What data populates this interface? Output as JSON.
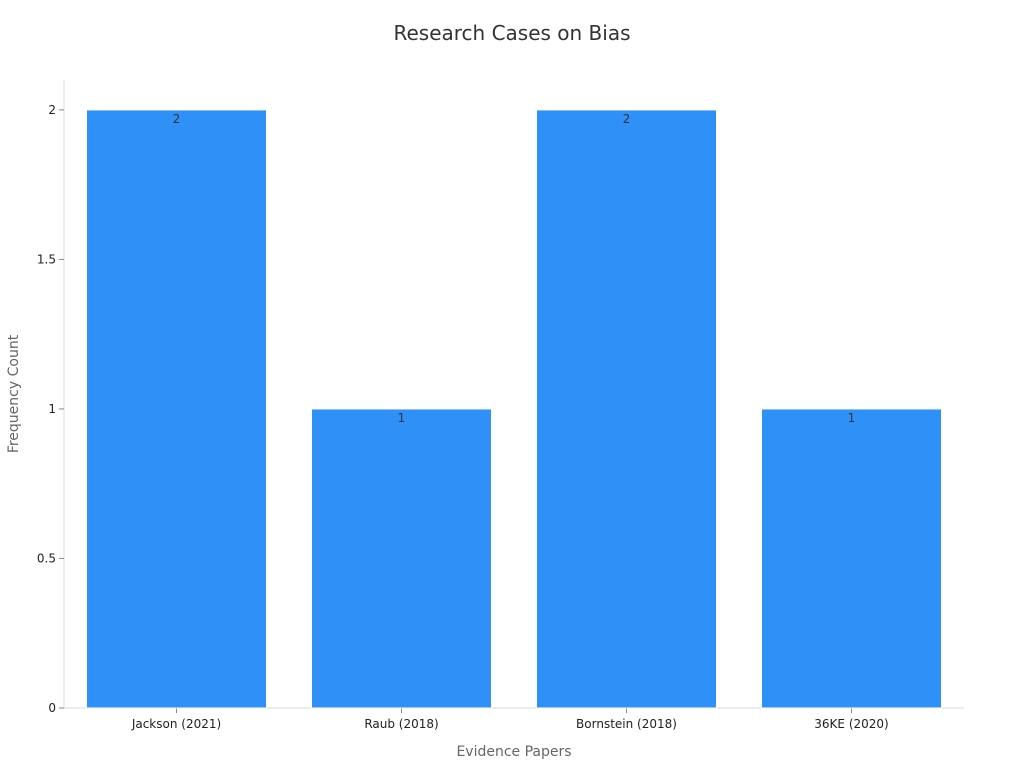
{
  "chart_data": {
    "type": "bar",
    "title": "Research Cases on Bias",
    "xlabel": "Evidence Papers",
    "ylabel": "Frequency Count",
    "categories": [
      "Jackson (2021)",
      "Raub (2018)",
      "Bornstein (2018)",
      "36KE (2020)"
    ],
    "values": [
      2,
      1,
      2,
      1
    ],
    "data_labels": [
      "2",
      "1",
      "2",
      "1"
    ],
    "ylim": [
      0,
      2.1
    ],
    "yticks": [
      0,
      0.5,
      1,
      1.5,
      2
    ],
    "ytick_labels": [
      "0",
      "0.5",
      "1",
      "1.5",
      "2"
    ],
    "grid": false,
    "legend": "none",
    "colors": {
      "bar": "#2F91F7",
      "bar_edge": "#ffffff",
      "axis": "#d9d9d9",
      "title": "#333333",
      "axis_label": "#666666",
      "tick_label": "#222222",
      "data_label": "#333333"
    }
  }
}
